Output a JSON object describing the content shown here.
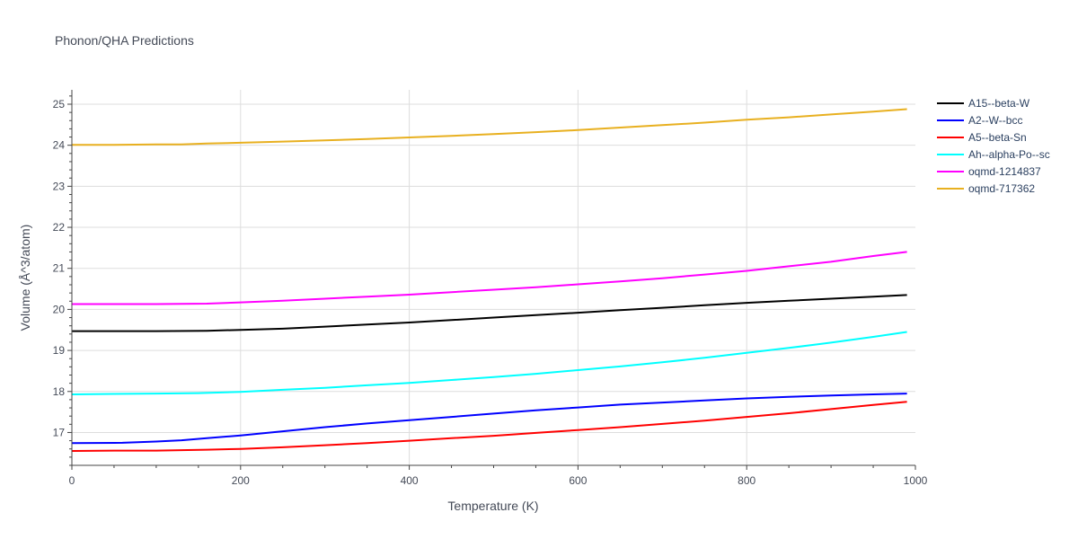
{
  "chart_data": {
    "type": "line",
    "title": "Phonon/QHA Predictions",
    "xlabel": "Temperature (K)",
    "ylabel": "Volume (Å^3/atom)",
    "xlim": [
      0,
      1000
    ],
    "ylim": [
      16.2,
      25.35
    ],
    "xticks": [
      0,
      200,
      400,
      600,
      800,
      1000
    ],
    "yticks": [
      17,
      18,
      19,
      20,
      21,
      22,
      23,
      24,
      25
    ],
    "grid": true,
    "legend_position": "top-right",
    "series": [
      {
        "name": "A15--beta-W",
        "color": "#000000",
        "x": [
          0,
          50,
          100,
          160,
          200,
          250,
          300,
          350,
          400,
          450,
          500,
          550,
          600,
          650,
          700,
          750,
          800,
          850,
          900,
          950,
          990
        ],
        "y": [
          19.47,
          19.47,
          19.47,
          19.48,
          19.5,
          19.53,
          19.58,
          19.63,
          19.68,
          19.74,
          19.8,
          19.86,
          19.92,
          19.98,
          20.04,
          20.1,
          20.16,
          20.21,
          20.26,
          20.31,
          20.35
        ]
      },
      {
        "name": "A2--W--bcc",
        "color": "#0000ff",
        "x": [
          0,
          60,
          100,
          130,
          160,
          200,
          250,
          300,
          350,
          400,
          450,
          500,
          550,
          600,
          650,
          700,
          750,
          800,
          850,
          900,
          950,
          990
        ],
        "y": [
          16.74,
          16.75,
          16.78,
          16.81,
          16.86,
          16.93,
          17.03,
          17.13,
          17.22,
          17.3,
          17.38,
          17.46,
          17.54,
          17.61,
          17.68,
          17.73,
          17.78,
          17.83,
          17.87,
          17.9,
          17.93,
          17.95
        ]
      },
      {
        "name": "A5--beta-Sn",
        "color": "#ff0000",
        "x": [
          0,
          50,
          100,
          130,
          160,
          200,
          250,
          300,
          350,
          400,
          450,
          500,
          550,
          600,
          650,
          700,
          750,
          800,
          850,
          900,
          950,
          990
        ],
        "y": [
          16.55,
          16.56,
          16.56,
          16.57,
          16.58,
          16.6,
          16.64,
          16.69,
          16.74,
          16.8,
          16.86,
          16.92,
          16.99,
          17.06,
          17.13,
          17.21,
          17.29,
          17.38,
          17.47,
          17.57,
          17.67,
          17.75
        ]
      },
      {
        "name": "Ah--alpha-Po--sc",
        "color": "#00ffff",
        "x": [
          0,
          50,
          100,
          150,
          200,
          250,
          300,
          350,
          400,
          450,
          500,
          550,
          600,
          650,
          700,
          750,
          800,
          850,
          900,
          950,
          990
        ],
        "y": [
          17.93,
          17.94,
          17.95,
          17.96,
          17.99,
          18.04,
          18.09,
          18.15,
          18.21,
          18.28,
          18.35,
          18.43,
          18.52,
          18.61,
          18.71,
          18.82,
          18.94,
          19.06,
          19.19,
          19.33,
          19.45
        ]
      },
      {
        "name": "oqmd-1214837",
        "color": "#ff00ff",
        "x": [
          0,
          50,
          100,
          160,
          200,
          250,
          300,
          350,
          400,
          450,
          500,
          550,
          600,
          650,
          700,
          750,
          800,
          850,
          900,
          950,
          990
        ],
        "y": [
          20.13,
          20.13,
          20.13,
          20.14,
          20.17,
          20.21,
          20.26,
          20.31,
          20.36,
          20.42,
          20.48,
          20.54,
          20.61,
          20.68,
          20.76,
          20.85,
          20.94,
          21.05,
          21.16,
          21.3,
          21.4
        ]
      },
      {
        "name": "oqmd-717362",
        "color": "#e8b020",
        "x": [
          0,
          50,
          100,
          130,
          160,
          200,
          250,
          300,
          350,
          400,
          450,
          500,
          550,
          600,
          650,
          700,
          750,
          800,
          850,
          900,
          950,
          990
        ],
        "y": [
          24.01,
          24.01,
          24.02,
          24.02,
          24.04,
          24.06,
          24.09,
          24.12,
          24.15,
          24.19,
          24.23,
          24.27,
          24.32,
          24.37,
          24.43,
          24.49,
          24.55,
          24.62,
          24.68,
          24.75,
          24.82,
          24.88
        ]
      }
    ]
  }
}
